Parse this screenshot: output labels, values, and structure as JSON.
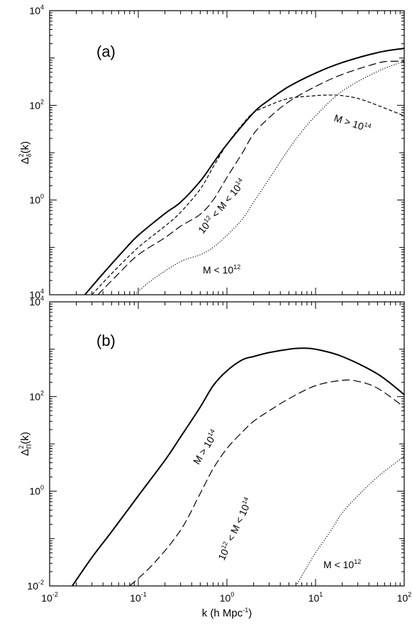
{
  "chart_data": [
    {
      "type": "line",
      "panel_label": "(a)",
      "ylabel": {
        "base": "Δ",
        "sup": "2",
        "sub": "δ",
        "rest": "(k)"
      },
      "xscale": "log",
      "yscale": "log",
      "xlim": [
        0.01,
        100
      ],
      "ylim": [
        0.01,
        10000
      ],
      "yticks": [
        {
          "base": "10",
          "exp": "-2",
          "value": 0.01,
          "shown": false
        },
        {
          "base": "10",
          "exp": "0",
          "value": 1
        },
        {
          "base": "10",
          "exp": "2",
          "value": 100
        },
        {
          "base": "10",
          "exp": "4",
          "value": 10000
        }
      ],
      "bottom_tick_label": {
        "base": "10",
        "exp": "4"
      },
      "series": [
        {
          "style": "solid",
          "x": [
            0.025,
            0.04,
            0.07,
            0.1,
            0.2,
            0.3,
            0.5,
            0.7,
            1,
            2,
            3,
            5,
            10,
            20,
            50,
            100
          ],
          "y": [
            0.01,
            0.028,
            0.09,
            0.18,
            0.52,
            0.9,
            2.5,
            6,
            15,
            70,
            130,
            250,
            480,
            800,
            1300,
            1600
          ]
        },
        {
          "style": "short-dash",
          "x": [
            0.03,
            0.05,
            0.1,
            0.2,
            0.3,
            0.5,
            0.7,
            1,
            1.5,
            2,
            3,
            5,
            10,
            15,
            20,
            30,
            50,
            100
          ],
          "y": [
            0.01,
            0.028,
            0.1,
            0.28,
            0.55,
            1.7,
            5,
            15,
            40,
            70,
            100,
            140,
            160,
            165,
            160,
            140,
            100,
            60
          ]
        },
        {
          "style": "long-dash",
          "x": [
            0.035,
            0.06,
            0.1,
            0.2,
            0.3,
            0.5,
            0.7,
            1,
            1.5,
            2,
            3,
            5,
            10,
            20,
            50,
            70,
            100
          ],
          "y": [
            0.01,
            0.028,
            0.07,
            0.16,
            0.28,
            0.5,
            1,
            3,
            10,
            25,
            55,
            120,
            250,
            450,
            780,
            850,
            850
          ]
        },
        {
          "style": "dotted",
          "x": [
            0.09,
            0.15,
            0.3,
            0.5,
            0.7,
            1,
            1.5,
            2,
            3,
            5,
            7,
            10,
            20,
            50,
            100
          ],
          "y": [
            0.01,
            0.022,
            0.05,
            0.07,
            0.1,
            0.18,
            0.4,
            0.9,
            2.8,
            12,
            28,
            60,
            200,
            520,
            850
          ]
        }
      ],
      "annotations": [
        {
          "text": "M > 10",
          "sup": "14"
        },
        {
          "text": "10",
          "sup": "12",
          "text2": " < M < 10",
          "sup2": "14"
        },
        {
          "text": "M < 10",
          "sup": "12"
        }
      ]
    },
    {
      "type": "line",
      "panel_label": "(b)",
      "xlabel": "k (h Mpc",
      "xlabel_sup": "-1",
      "xlabel_end": ")",
      "ylabel": {
        "base": "Δ",
        "sup": "2",
        "sub": "Π",
        "rest": "(k)"
      },
      "xscale": "log",
      "yscale": "log",
      "xlim": [
        0.01,
        100
      ],
      "ylim": [
        0.01,
        10000
      ],
      "xticks": [
        {
          "base": "10",
          "exp": "-2",
          "value": 0.01
        },
        {
          "base": "10",
          "exp": "-1",
          "value": 0.1
        },
        {
          "base": "10",
          "exp": "0",
          "value": 1
        },
        {
          "base": "10",
          "exp": "1",
          "value": 10
        },
        {
          "base": "10",
          "exp": "2",
          "value": 100
        }
      ],
      "yticks": [
        {
          "base": "10",
          "exp": "-2",
          "value": 0.01
        },
        {
          "base": "10",
          "exp": "0",
          "value": 1
        },
        {
          "base": "10",
          "exp": "2",
          "value": 100
        },
        {
          "base": "10",
          "exp": "4",
          "value": 10000
        }
      ],
      "series": [
        {
          "style": "solid",
          "x": [
            0.018,
            0.03,
            0.05,
            0.1,
            0.2,
            0.3,
            0.5,
            0.7,
            1,
            1.5,
            2,
            3,
            5,
            7,
            10,
            20,
            50,
            100
          ],
          "y": [
            0.01,
            0.04,
            0.14,
            0.8,
            4.5,
            14,
            60,
            170,
            350,
            600,
            700,
            850,
            1000,
            1050,
            1000,
            700,
            300,
            110
          ]
        },
        {
          "style": "long-dash",
          "x": [
            0.08,
            0.15,
            0.3,
            0.5,
            0.7,
            1,
            1.5,
            2,
            3,
            5,
            10,
            20,
            30,
            50,
            100
          ],
          "y": [
            0.01,
            0.03,
            0.15,
            0.9,
            3,
            8,
            18,
            30,
            50,
            90,
            170,
            220,
            210,
            150,
            60
          ]
        },
        {
          "style": "dotted",
          "x": [
            6,
            8,
            10,
            15,
            20,
            30,
            50,
            100
          ],
          "y": [
            0.01,
            0.025,
            0.05,
            0.15,
            0.35,
            0.8,
            2,
            5.5
          ]
        }
      ],
      "annotations": [
        {
          "text": "M > 10",
          "sup": "14"
        },
        {
          "text": "10",
          "sup": "12",
          "text2": " < M < 10",
          "sup2": "14"
        },
        {
          "text": "M < 10",
          "sup": "12"
        }
      ]
    }
  ]
}
